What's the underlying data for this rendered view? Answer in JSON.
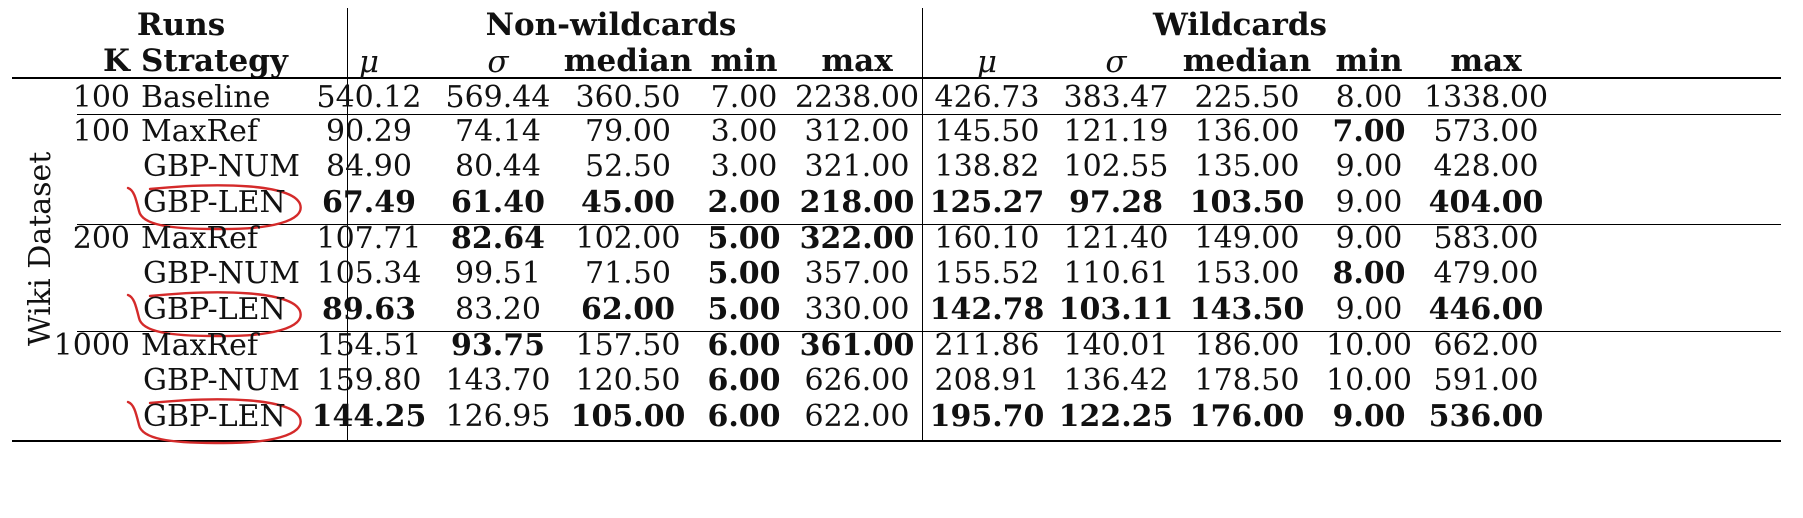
{
  "header": {
    "runs": "Runs",
    "k": "K",
    "strategy": "Strategy",
    "group_left": "Non-wildcards",
    "group_right": "Wildcards",
    "columns": [
      "μ",
      "σ",
      "median",
      "min",
      "max"
    ]
  },
  "dataset_label": "Wiki Dataset",
  "rows": [
    {
      "k": "100",
      "strategy": "Baseline",
      "circled": false,
      "values": [
        "540.12",
        "569.44",
        "360.50",
        "7.00",
        "2238.00",
        "426.73",
        "383.47",
        "225.50",
        "8.00",
        "1338.00"
      ],
      "bold": [
        false,
        false,
        false,
        false,
        false,
        false,
        false,
        false,
        false,
        false
      ]
    },
    {
      "k": "100",
      "strategy": "MaxRef",
      "circled": false,
      "values": [
        "90.29",
        "74.14",
        "79.00",
        "3.00",
        "312.00",
        "145.50",
        "121.19",
        "136.00",
        "7.00",
        "573.00"
      ],
      "bold": [
        false,
        false,
        false,
        false,
        false,
        false,
        false,
        false,
        true,
        false
      ]
    },
    {
      "k": "",
      "strategy": "GBP-NUM",
      "circled": false,
      "values": [
        "84.90",
        "80.44",
        "52.50",
        "3.00",
        "321.00",
        "138.82",
        "102.55",
        "135.00",
        "9.00",
        "428.00"
      ],
      "bold": [
        false,
        false,
        false,
        false,
        false,
        false,
        false,
        false,
        false,
        false
      ]
    },
    {
      "k": "",
      "strategy": "GBP-LEN",
      "circled": true,
      "values": [
        "67.49",
        "61.40",
        "45.00",
        "2.00",
        "218.00",
        "125.27",
        "97.28",
        "103.50",
        "9.00",
        "404.00"
      ],
      "bold": [
        true,
        true,
        true,
        true,
        true,
        true,
        true,
        true,
        false,
        true
      ]
    },
    {
      "k": "200",
      "strategy": "MaxRef",
      "circled": false,
      "values": [
        "107.71",
        "82.64",
        "102.00",
        "5.00",
        "322.00",
        "160.10",
        "121.40",
        "149.00",
        "9.00",
        "583.00"
      ],
      "bold": [
        false,
        true,
        false,
        true,
        true,
        false,
        false,
        false,
        false,
        false
      ]
    },
    {
      "k": "",
      "strategy": "GBP-NUM",
      "circled": false,
      "values": [
        "105.34",
        "99.51",
        "71.50",
        "5.00",
        "357.00",
        "155.52",
        "110.61",
        "153.00",
        "8.00",
        "479.00"
      ],
      "bold": [
        false,
        false,
        false,
        true,
        false,
        false,
        false,
        false,
        true,
        false
      ]
    },
    {
      "k": "",
      "strategy": "GBP-LEN",
      "circled": true,
      "values": [
        "89.63",
        "83.20",
        "62.00",
        "5.00",
        "330.00",
        "142.78",
        "103.11",
        "143.50",
        "9.00",
        "446.00"
      ],
      "bold": [
        true,
        false,
        true,
        true,
        false,
        true,
        true,
        true,
        false,
        true
      ]
    },
    {
      "k": "1000",
      "strategy": "MaxRef",
      "circled": false,
      "values": [
        "154.51",
        "93.75",
        "157.50",
        "6.00",
        "361.00",
        "211.86",
        "140.01",
        "186.00",
        "10.00",
        "662.00"
      ],
      "bold": [
        false,
        true,
        false,
        true,
        true,
        false,
        false,
        false,
        false,
        false
      ]
    },
    {
      "k": "",
      "strategy": "GBP-NUM",
      "circled": false,
      "values": [
        "159.80",
        "143.70",
        "120.50",
        "6.00",
        "626.00",
        "208.91",
        "136.42",
        "178.50",
        "10.00",
        "591.00"
      ],
      "bold": [
        false,
        false,
        false,
        true,
        false,
        false,
        false,
        false,
        false,
        false
      ]
    },
    {
      "k": "",
      "strategy": "GBP-LEN",
      "circled": true,
      "values": [
        "144.25",
        "126.95",
        "105.00",
        "6.00",
        "622.00",
        "195.70",
        "122.25",
        "176.00",
        "9.00",
        "536.00"
      ],
      "bold": [
        true,
        false,
        true,
        true,
        false,
        true,
        true,
        true,
        true,
        true
      ]
    }
  ],
  "colors": {
    "text": "#111111",
    "rule": "#000000",
    "annotation": "#d42a2a"
  }
}
